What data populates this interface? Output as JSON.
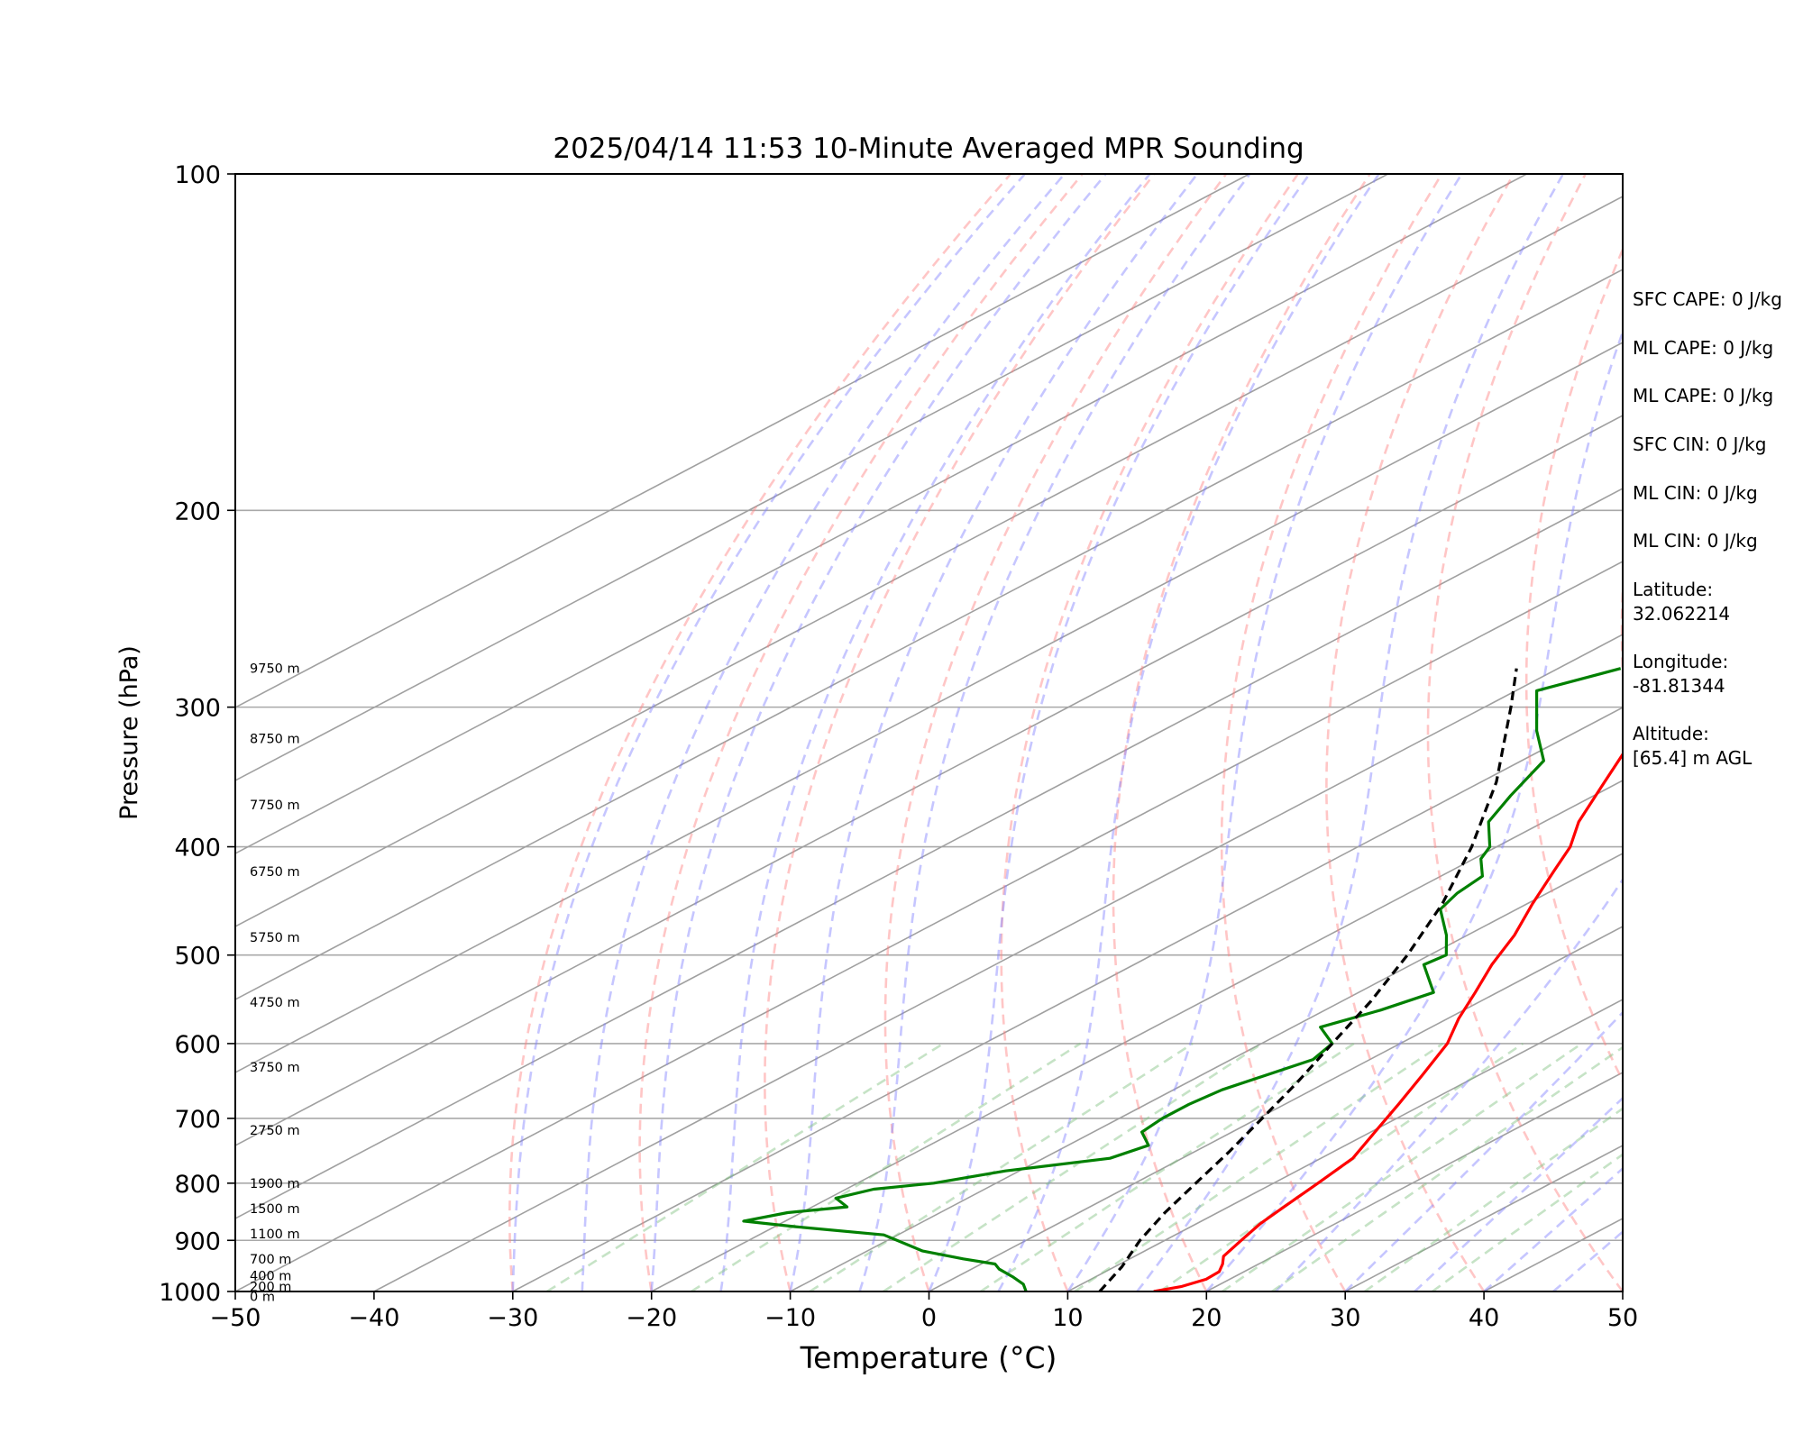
{
  "chart_data": {
    "type": "skew-t",
    "title": "2025/04/14 11:53 10-Minute Averaged MPR Sounding",
    "xlabel": "Temperature (°C)",
    "ylabel": "Pressure (hPa)",
    "xlim": [
      -50,
      50
    ],
    "ylim": [
      1000,
      100
    ],
    "y_scale": "log",
    "x_ticks": [
      "−50",
      "−40",
      "−30",
      "−20",
      "−10",
      "0",
      "10",
      "20",
      "30",
      "40",
      "50"
    ],
    "y_ticks": [
      "100",
      "200",
      "300",
      "400",
      "500",
      "600",
      "700",
      "800",
      "900",
      "1000"
    ],
    "grid": true,
    "series": [
      {
        "name": "",
        "role": "temperature",
        "color": "#ff0000",
        "points": [
          [
            1000,
            16.2
          ],
          [
            990,
            17.5
          ],
          [
            975,
            18.3
          ],
          [
            960,
            18.2
          ],
          [
            945,
            17.4
          ],
          [
            930,
            16.4
          ],
          [
            900,
            15.5
          ],
          [
            870,
            14.6
          ],
          [
            840,
            14.0
          ],
          [
            800,
            13.2
          ],
          [
            760,
            12.3
          ],
          [
            720,
            10.3
          ],
          [
            680,
            8.2
          ],
          [
            640,
            5.9
          ],
          [
            600,
            3.4
          ],
          [
            570,
            0.8
          ],
          [
            540,
            -1.6
          ],
          [
            510,
            -4.2
          ],
          [
            480,
            -6.6
          ],
          [
            450,
            -9.6
          ],
          [
            420,
            -12.6
          ],
          [
            400,
            -14.7
          ],
          [
            380,
            -17.5
          ],
          [
            350,
            -21.1
          ],
          [
            320,
            -25.0
          ],
          [
            300,
            -28.0
          ],
          [
            285,
            -29.9
          ],
          [
            277,
            -31.2
          ]
        ]
      },
      {
        "name": "",
        "role": "dewpoint",
        "color": "#008000",
        "points": [
          [
            1000,
            7.0
          ],
          [
            985,
            5.8
          ],
          [
            970,
            4.0
          ],
          [
            955,
            2.0
          ],
          [
            945,
            1.0
          ],
          [
            935,
            -2.0
          ],
          [
            920,
            -6.0
          ],
          [
            890,
            -11.0
          ],
          [
            875,
            -18.5
          ],
          [
            865,
            -23.0
          ],
          [
            850,
            -21.0
          ],
          [
            840,
            -17.5
          ],
          [
            825,
            -19.5
          ],
          [
            810,
            -18.0
          ],
          [
            800,
            -14.5
          ],
          [
            780,
            -11.0
          ],
          [
            760,
            -5.2
          ],
          [
            740,
            -4.2
          ],
          [
            720,
            -6.5
          ],
          [
            700,
            -6.9
          ],
          [
            680,
            -6.9
          ],
          [
            660,
            -6.5
          ],
          [
            620,
            -4.1
          ],
          [
            600,
            -4.9
          ],
          [
            580,
            -8.0
          ],
          [
            560,
            -6.0
          ],
          [
            540,
            -4.6
          ],
          [
            510,
            -9.1
          ],
          [
            500,
            -8.8
          ],
          [
            480,
            -11.5
          ],
          [
            455,
            -15.5
          ],
          [
            440,
            -16.5
          ],
          [
            425,
            -17.0
          ],
          [
            410,
            -19.5
          ],
          [
            400,
            -20.5
          ],
          [
            380,
            -24.0
          ],
          [
            360,
            -26.0
          ],
          [
            335,
            -28.4
          ],
          [
            315,
            -33.0
          ],
          [
            290,
            -38.5
          ],
          [
            277,
            -35.5
          ]
        ]
      },
      {
        "name": "",
        "role": "parcel",
        "color": "#000000",
        "points": [
          [
            1000,
            12.3
          ],
          [
            950,
            10.5
          ],
          [
            900,
            8.2
          ],
          [
            850,
            6.2
          ],
          [
            800,
            4.4
          ],
          [
            750,
            2.5
          ],
          [
            700,
            0.3
          ],
          [
            650,
            -2.1
          ],
          [
            600,
            -4.9
          ],
          [
            550,
            -7.9
          ],
          [
            500,
            -11.6
          ],
          [
            450,
            -16.1
          ],
          [
            400,
            -21.8
          ],
          [
            350,
            -28.9
          ],
          [
            300,
            -38.1
          ],
          [
            277,
            -43.0
          ]
        ]
      }
    ],
    "height_labels": [
      "9750 m",
      "8750 m",
      "7750 m",
      "6750 m",
      "5750 m",
      "4750 m",
      "3750 m",
      "2750 m",
      "1900 m",
      "1500 m",
      "1100 m",
      "700 m",
      "400 m",
      "200 m",
      "0 m"
    ],
    "height_label_pressures": [
      277,
      320,
      367,
      421,
      482,
      551,
      630,
      717,
      800,
      843,
      888,
      935,
      968,
      990,
      1010
    ],
    "background_lines": {
      "dry_adiabats": {
        "color": "#ff8080"
      },
      "moist_adiabats": {
        "color": "#8080ff"
      },
      "mixing_ratio_lines": {
        "color": "#80c080"
      },
      "isotherms": {
        "color": "#a0a0a0"
      }
    }
  },
  "info_panel": {
    "sfc_cape": "SFC CAPE: 0 J/kg",
    "ml_cape_1": "ML CAPE: 0 J/kg",
    "ml_cape_2": "ML CAPE: 0 J/kg",
    "sfc_cin": "SFC CIN: 0 J/kg",
    "ml_cin_1": "ML CIN: 0 J/kg",
    "ml_cin_2": "ML CIN: 0 J/kg",
    "latitude_label": "Latitude:",
    "latitude_value": "32.062214",
    "longitude_label": "Longitude:",
    "longitude_value": "-81.81344",
    "altitude_label": "Altitude:",
    "altitude_value": "[65.4] m AGL"
  }
}
